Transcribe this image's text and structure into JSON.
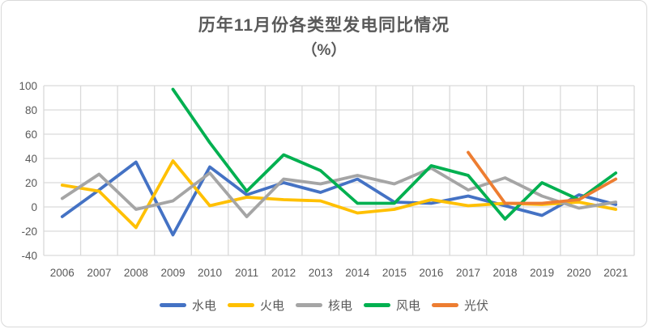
{
  "chart_data": {
    "type": "line",
    "title": "历年11月份各类型发电同比情况",
    "subtitle": "（%）",
    "categories": [
      "2006",
      "2007",
      "2008",
      "2009",
      "2010",
      "2011",
      "2012",
      "2013",
      "2014",
      "2015",
      "2016",
      "2017",
      "2018",
      "2019",
      "2020",
      "2021"
    ],
    "y_ticks": [
      100,
      80,
      60,
      40,
      20,
      0,
      -20,
      -40
    ],
    "ylim": [
      -40,
      100
    ],
    "grid": true,
    "grid_color": "#d9d9d9",
    "axis_label_color": "#595959",
    "legend_position": "bottom",
    "series": [
      {
        "name": "水电",
        "key": "hydro",
        "color": "#4472C4",
        "values": [
          -8,
          14,
          37,
          -23,
          33,
          10,
          20,
          12,
          23,
          4,
          3,
          9,
          1,
          -7,
          10,
          2
        ]
      },
      {
        "name": "火电",
        "key": "thermal",
        "color": "#FFC000",
        "values": [
          18,
          13,
          -17,
          38,
          1,
          8,
          6,
          5,
          -5,
          -2,
          6,
          1,
          3,
          2,
          4,
          -2
        ]
      },
      {
        "name": "核电",
        "key": "nuclear",
        "color": "#A5A5A5",
        "values": [
          7,
          27,
          -2,
          5,
          28,
          -8,
          23,
          19,
          26,
          19,
          32,
          14,
          24,
          9,
          -1,
          4
        ]
      },
      {
        "name": "风电",
        "key": "wind",
        "color": "#00B050",
        "values": [
          null,
          null,
          null,
          97,
          53,
          13,
          43,
          30,
          3,
          3,
          34,
          26,
          -10,
          20,
          6,
          28
        ]
      },
      {
        "name": "光伏",
        "key": "solar",
        "color": "#ED7D31",
        "values": [
          null,
          null,
          null,
          null,
          null,
          null,
          null,
          null,
          null,
          null,
          null,
          45,
          3,
          3,
          6,
          23
        ]
      }
    ]
  }
}
